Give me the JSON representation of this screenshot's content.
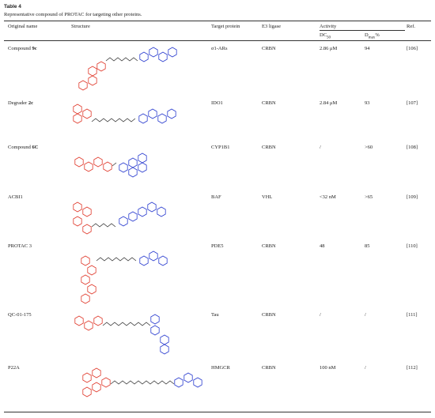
{
  "header": {
    "label": "Table 4",
    "caption": "Representative compound of PROTAC for targeting other proteins."
  },
  "table": {
    "columns": {
      "name": "Original name",
      "structure": "Structure",
      "target": "Target protein",
      "e3": "E3 ligase",
      "activity": "Activity",
      "ref": "Ref."
    },
    "subcolumns": {
      "dc": {
        "main": "DC",
        "sub": "50"
      },
      "dmax": {
        "main": "D",
        "sub": "max",
        "suffix": "%"
      }
    },
    "rows": [
      {
        "name": {
          "text": "Compound ",
          "bold": "9c"
        },
        "target": "σ1-ARs",
        "e3": "CRBN",
        "dc": "2.86 μM",
        "dmax": "94",
        "ref": "[106]"
      },
      {
        "name": {
          "text": "Degrader ",
          "bold": "2c"
        },
        "target": "IDO1",
        "e3": "CRBN",
        "dc": "2.84 μM",
        "dmax": "93",
        "ref": "[107]"
      },
      {
        "name": {
          "text": "Compound ",
          "bold": "6C"
        },
        "target": "CYP1B1",
        "e3": "CRBN",
        "dc": "/",
        "dmax": ">60",
        "ref": "[108]"
      },
      {
        "name": {
          "text": "ACBI1",
          "bold": ""
        },
        "target": "BAF",
        "e3": "VHL",
        "dc": "<32 nM",
        "dmax": ">65",
        "ref": "[109]"
      },
      {
        "name": {
          "text": "PROTAC 3",
          "bold": ""
        },
        "target": "PDE5",
        "e3": "CRBN",
        "dc": "48",
        "dmax": "85",
        "ref": "[110]"
      },
      {
        "name": {
          "text": "QC-01-175",
          "bold": ""
        },
        "target": "Tau",
        "e3": "CRBN",
        "dc": "/",
        "dmax": "/",
        "ref": "[111]"
      },
      {
        "name": {
          "text": "P22A",
          "bold": ""
        },
        "target": "HMGCR",
        "e3": "CRBN",
        "dc": "100 nM",
        "dmax": "/",
        "ref": "[112]"
      }
    ]
  }
}
